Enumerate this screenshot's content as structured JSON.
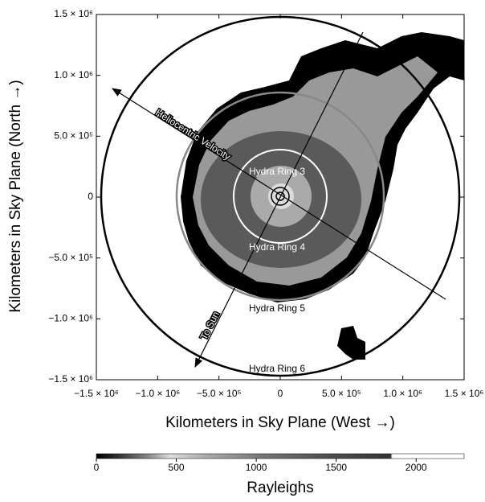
{
  "chart_data": {
    "type": "image",
    "x_label": "Kilometers in Sky Plane (West →)",
    "y_label": "Kilometers in Sky Plane (North →)",
    "xlim": [
      -1500000,
      1500000
    ],
    "ylim": [
      -1500000,
      1500000
    ],
    "xticks": [
      {
        "value": -1500000,
        "label": "−1.5 × 10⁶"
      },
      {
        "value": -1000000,
        "label": "−1.0 × 10⁶"
      },
      {
        "value": -500000,
        "label": "−5.0 × 10⁵"
      },
      0,
      {
        "value": 500000,
        "label": "5.0 × 10⁵"
      },
      {
        "value": 1000000,
        "label": "1.0 × 10⁶"
      },
      {
        "value": 1500000,
        "label": "1.5 × 10⁶"
      }
    ],
    "yticks": [
      {
        "value": -1500000,
        "label": "−1.5 × 10⁶"
      },
      {
        "value": -1000000,
        "label": "−1.0 × 10⁶"
      },
      {
        "value": -500000,
        "label": "−5.0 × 10⁵"
      },
      0,
      {
        "value": 500000,
        "label": "5.0 × 10⁵"
      },
      {
        "value": 1000000,
        "label": "1.0 × 10⁶"
      },
      {
        "value": 1500000,
        "label": "1.5 × 10⁶"
      }
    ],
    "annotations": [
      "Heliocentric Velocity",
      "To Sun",
      "Hydra Ring 3",
      "Hydra Ring 4",
      "Hydra Ring 5",
      "Hydra Ring 6"
    ],
    "colorbar": {
      "label": "Rayleighs",
      "lim": [
        0,
        2300
      ],
      "ticks": [
        0,
        500,
        1000,
        1500,
        2000
      ]
    }
  }
}
